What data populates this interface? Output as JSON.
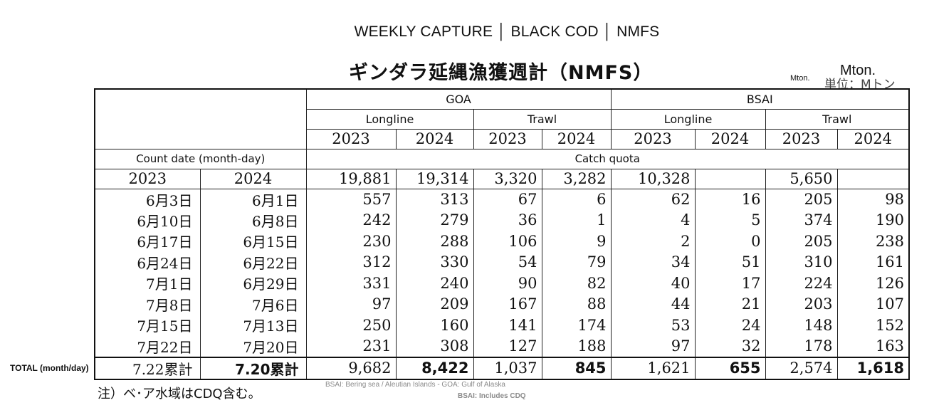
{
  "header": {
    "title_en": "WEEKLY CAPTURE │ BLACK COD │ NMFS",
    "title_jp": "ギンダラ延縄漁獲週計（NMFS）",
    "unit_small": "Mton.",
    "unit_big": "Mton.",
    "unit_jp": "単位：Mトン"
  },
  "table": {
    "region_headers": [
      "GOA",
      "BSAI"
    ],
    "gear_headers": [
      "Longline",
      "Trawl",
      "Longline",
      "Trawl"
    ],
    "years": [
      "2023",
      "2024",
      "2023",
      "2024",
      "2023",
      "2024",
      "2023",
      "2024"
    ],
    "count_date_label": "Count date (month-day)",
    "catch_quota_label": "Catch quota",
    "date_years": [
      "2023",
      "2024"
    ],
    "quota": [
      "19,881",
      "19,314",
      "3,320",
      "3,282",
      "10,328",
      "",
      "5,650",
      ""
    ],
    "rows": [
      {
        "d2023": "6月3日",
        "d2024": "6月1日",
        "values": [
          "557",
          "313",
          "67",
          "6",
          "62",
          "16",
          "205",
          "98"
        ]
      },
      {
        "d2023": "6月10日",
        "d2024": "6月8日",
        "values": [
          "242",
          "279",
          "36",
          "1",
          "4",
          "5",
          "374",
          "190"
        ]
      },
      {
        "d2023": "6月17日",
        "d2024": "6月15日",
        "values": [
          "230",
          "288",
          "106",
          "9",
          "2",
          "0",
          "205",
          "238"
        ]
      },
      {
        "d2023": "6月24日",
        "d2024": "6月22日",
        "values": [
          "312",
          "330",
          "54",
          "79",
          "34",
          "51",
          "310",
          "161"
        ]
      },
      {
        "d2023": "7月1日",
        "d2024": "6月29日",
        "values": [
          "331",
          "240",
          "90",
          "82",
          "40",
          "17",
          "224",
          "126"
        ]
      },
      {
        "d2023": "7月8日",
        "d2024": "7月6日",
        "values": [
          "97",
          "209",
          "167",
          "88",
          "44",
          "21",
          "203",
          "107"
        ]
      },
      {
        "d2023": "7月15日",
        "d2024": "7月13日",
        "values": [
          "250",
          "160",
          "141",
          "174",
          "53",
          "24",
          "148",
          "152"
        ]
      },
      {
        "d2023": "7月22日",
        "d2024": "7月20日",
        "values": [
          "231",
          "308",
          "127",
          "188",
          "97",
          "32",
          "178",
          "163"
        ]
      }
    ],
    "total": {
      "d2023": "7.22累計",
      "d2024": "7.20累計",
      "values": [
        "9,682",
        "8,422",
        "1,037",
        "845",
        "1,621",
        "655",
        "2,574",
        "1,618"
      ]
    }
  },
  "side_label": "TOTAL (month/day)",
  "notes": {
    "jp": "注）ベ･ア水域はCDQ含む。",
    "en_line1": "BSAI: Bering sea / Aleutian Islands - GOA: Gulf of Alaska",
    "en_line2": "BSAI: Includes CDQ"
  }
}
